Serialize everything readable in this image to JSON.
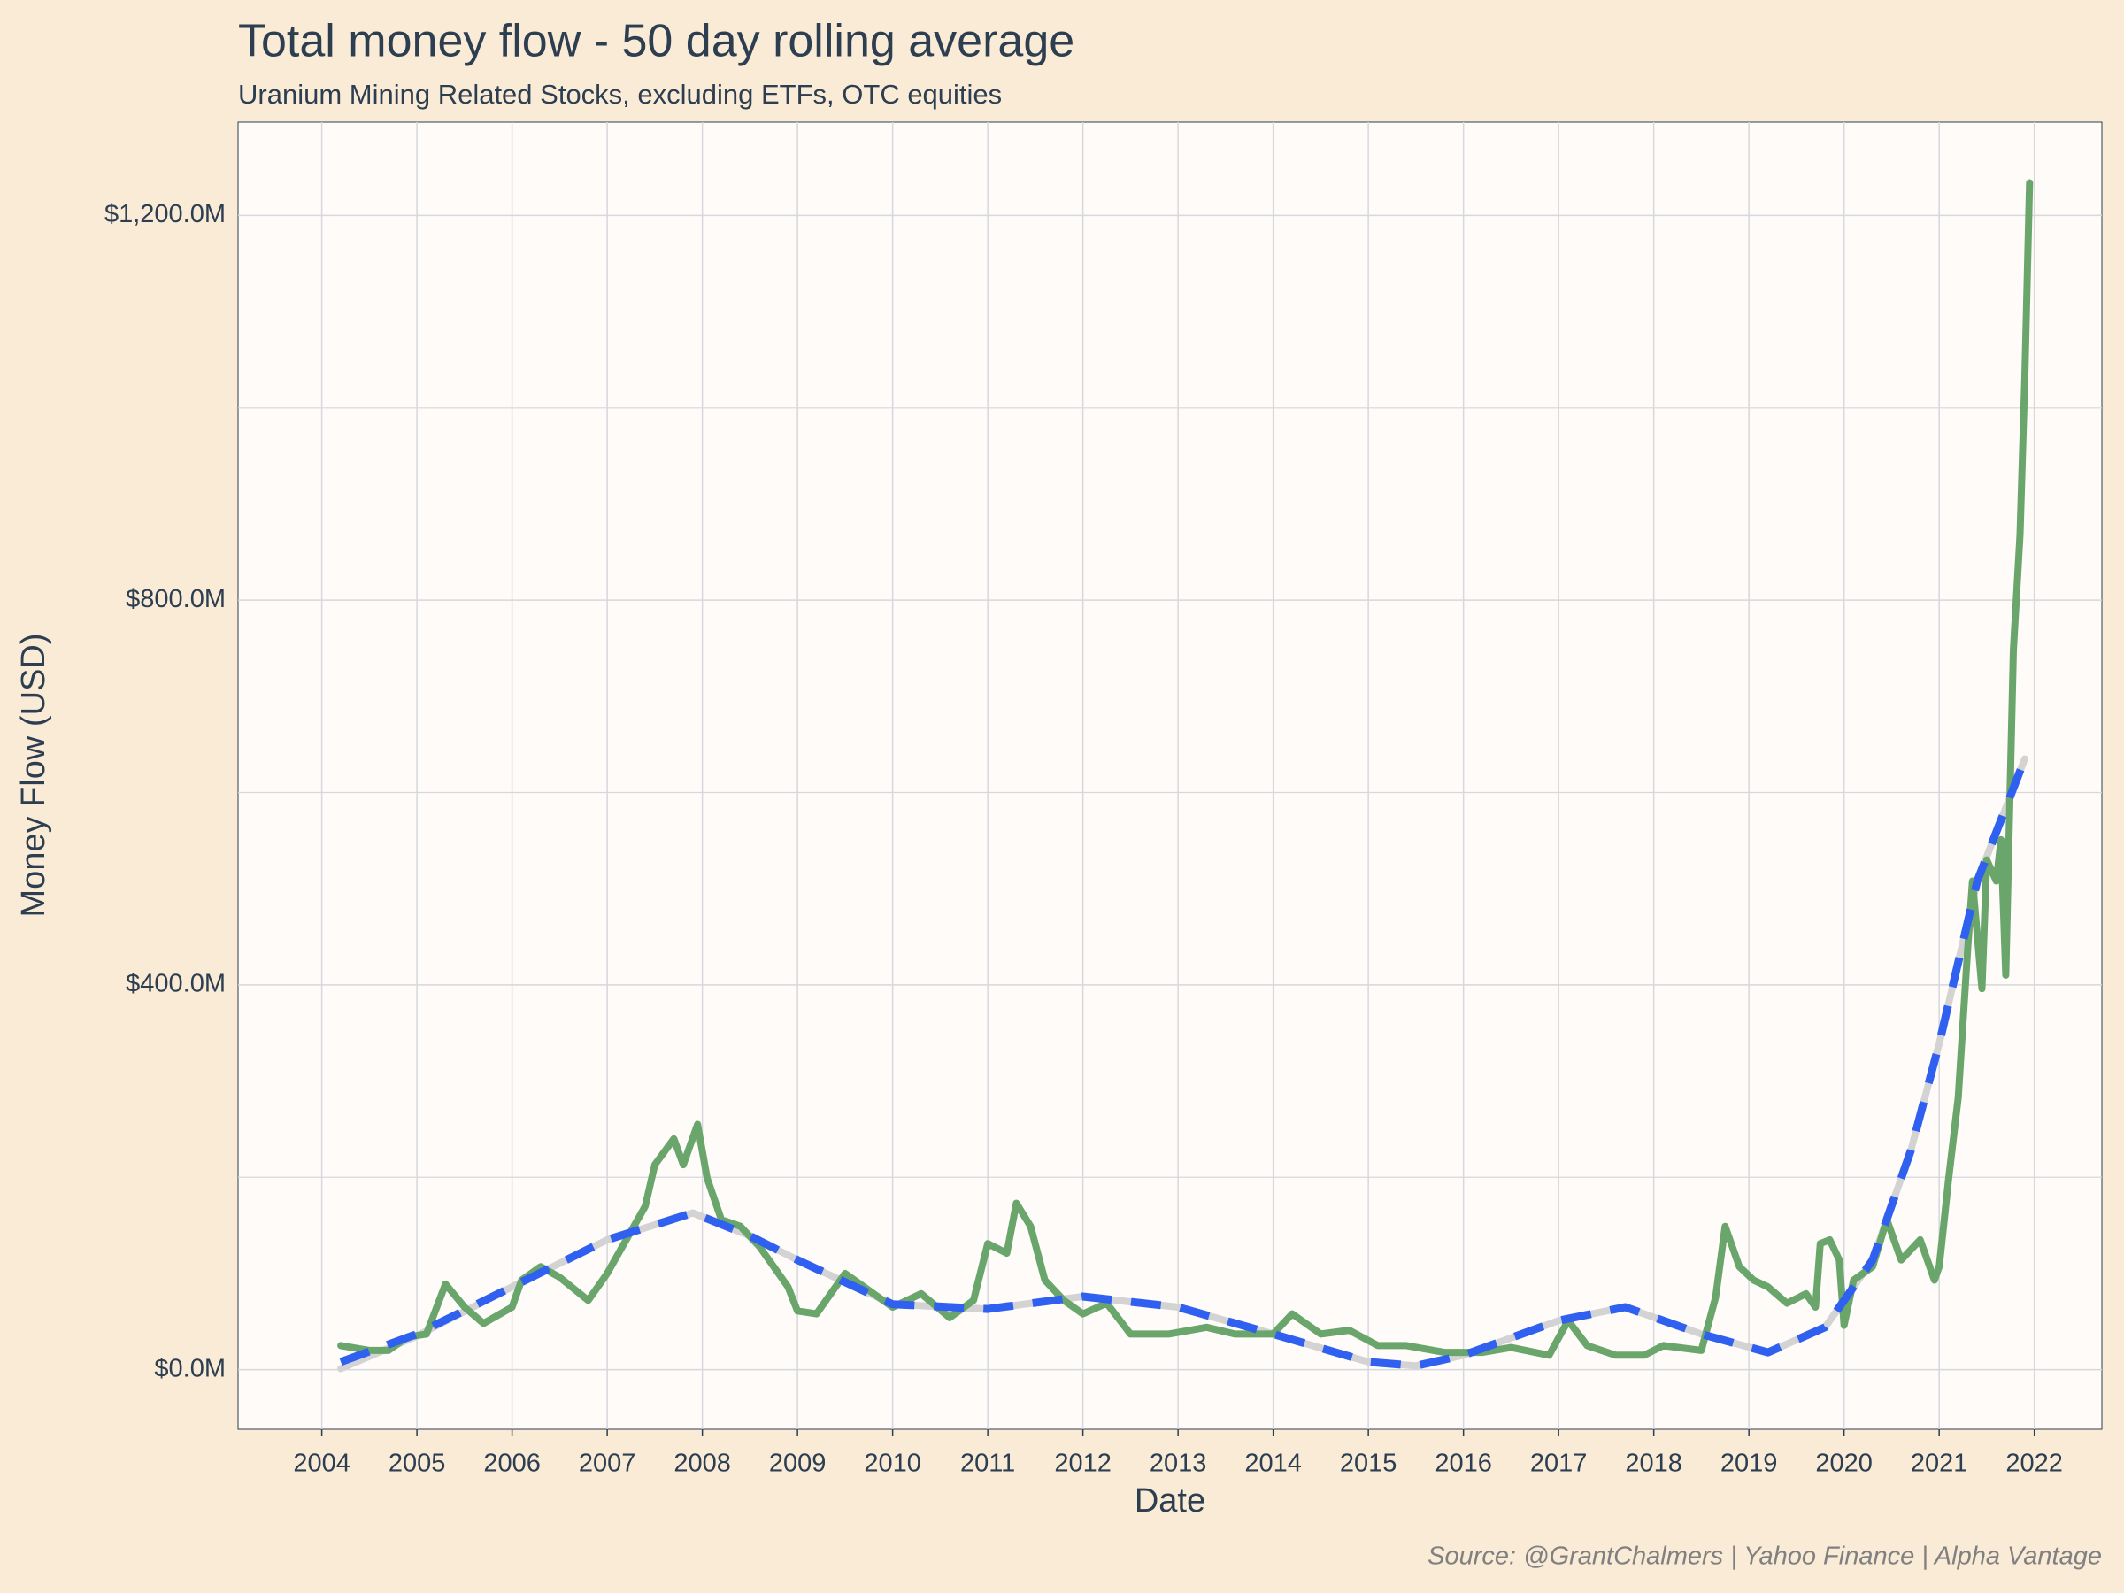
{
  "chart_data": {
    "type": "line",
    "title": "Total money flow - 50 day rolling average",
    "subtitle": "Uranium Mining Related Stocks, excluding ETFs, OTC equities",
    "x_label": "Date",
    "y_label": "Money Flow (USD)",
    "source": "Source: @GrantChalmers | Yahoo Finance | Alpha Vantage",
    "xlim": [
      2003.12,
      2022.71
    ],
    "xticks": [
      2004,
      2005,
      2006,
      2007,
      2008,
      2009,
      2010,
      2011,
      2012,
      2013,
      2014,
      2015,
      2016,
      2017,
      2018,
      2019,
      2020,
      2021,
      2022
    ],
    "ylim": [
      -62,
      1297
    ],
    "yticks": [
      {
        "value": 0,
        "label": "$0.0M"
      },
      {
        "value": 400,
        "label": "$400.0M"
      },
      {
        "value": 800,
        "label": "$800.0M"
      },
      {
        "value": 1200,
        "label": "$1,200.0M"
      }
    ],
    "yminor": [
      200,
      600,
      1000
    ],
    "grid": true,
    "series": [
      {
        "color": "#d3d3d3",
        "dash": false,
        "x": [
          2004.2,
          2005,
          2006,
          2007,
          2007.9,
          2008.5,
          2009,
          2010,
          2011,
          2012,
          2013,
          2014,
          2015,
          2015.5,
          2016,
          2017,
          2017.7,
          2018.5,
          2019.2,
          2019.8,
          2020.3,
          2020.7,
          2021,
          2021.4,
          2021.9
        ],
        "values": [
          1,
          35,
          86,
          135,
          163,
          139,
          114,
          68,
          63,
          76,
          65,
          37,
          8,
          4,
          15,
          51,
          65,
          37,
          18,
          44,
          114,
          227,
          339,
          508,
          635
        ]
      },
      {
        "color": "#6aa66b",
        "dash": false,
        "x": [
          2004.2,
          2004.5,
          2004.7,
          2004.9,
          2005.1,
          2005.3,
          2005.5,
          2005.7,
          2006.0,
          2006.1,
          2006.3,
          2006.5,
          2006.8,
          2007.0,
          2007.2,
          2007.4,
          2007.5,
          2007.7,
          2007.8,
          2007.95,
          2008.05,
          2008.2,
          2008.4,
          2008.6,
          2008.9,
          2009.0,
          2009.2,
          2009.5,
          2009.8,
          2010.0,
          2010.3,
          2010.6,
          2010.85,
          2011.0,
          2011.2,
          2011.3,
          2011.45,
          2011.6,
          2011.8,
          2012.0,
          2012.25,
          2012.5,
          2012.9,
          2013.3,
          2013.6,
          2014.0,
          2014.2,
          2014.5,
          2014.8,
          2015.1,
          2015.4,
          2015.8,
          2016.2,
          2016.5,
          2016.9,
          2017.1,
          2017.3,
          2017.6,
          2017.9,
          2018.1,
          2018.5,
          2018.65,
          2018.75,
          2018.9,
          2019.05,
          2019.2,
          2019.4,
          2019.6,
          2019.7,
          2019.75,
          2019.85,
          2019.95,
          2020.0,
          2020.1,
          2020.3,
          2020.45,
          2020.6,
          2020.8,
          2020.95,
          2021.0,
          2021.1,
          2021.2,
          2021.3,
          2021.35,
          2021.45,
          2021.5,
          2021.6,
          2021.65,
          2021.7,
          2021.78,
          2021.85,
          2021.9,
          2021.95
        ],
        "values": [
          25,
          20,
          20,
          34,
          37,
          89,
          65,
          48,
          65,
          93,
          107,
          96,
          72,
          100,
          135,
          170,
          213,
          240,
          213,
          255,
          199,
          156,
          149,
          128,
          86,
          61,
          58,
          100,
          79,
          65,
          79,
          54,
          72,
          131,
          121,
          173,
          149,
          93,
          72,
          58,
          69,
          37,
          37,
          44,
          37,
          37,
          58,
          37,
          41,
          25,
          25,
          18,
          18,
          23,
          15,
          51,
          25,
          15,
          15,
          25,
          20,
          75,
          149,
          107,
          93,
          86,
          69,
          79,
          65,
          131,
          135,
          114,
          46,
          93,
          107,
          156,
          114,
          135,
          93,
          107,
          199,
          283,
          438,
          508,
          396,
          530,
          508,
          551,
          410,
          748,
          868,
          1030,
          1234
        ]
      },
      {
        "color": "#3060f0",
        "dash": true,
        "x": [
          2004.2,
          2005,
          2006,
          2007,
          2007.9,
          2008.5,
          2009,
          2010,
          2011,
          2012,
          2013,
          2014,
          2015,
          2015.5,
          2016,
          2017,
          2017.7,
          2018.5,
          2019.2,
          2019.8,
          2020.3,
          2020.7,
          2021,
          2021.4,
          2021.9
        ],
        "values": [
          8,
          37,
          86,
          135,
          163,
          139,
          114,
          68,
          63,
          76,
          65,
          37,
          8,
          4,
          15,
          51,
          65,
          37,
          18,
          44,
          114,
          227,
          339,
          508,
          635
        ]
      }
    ]
  }
}
